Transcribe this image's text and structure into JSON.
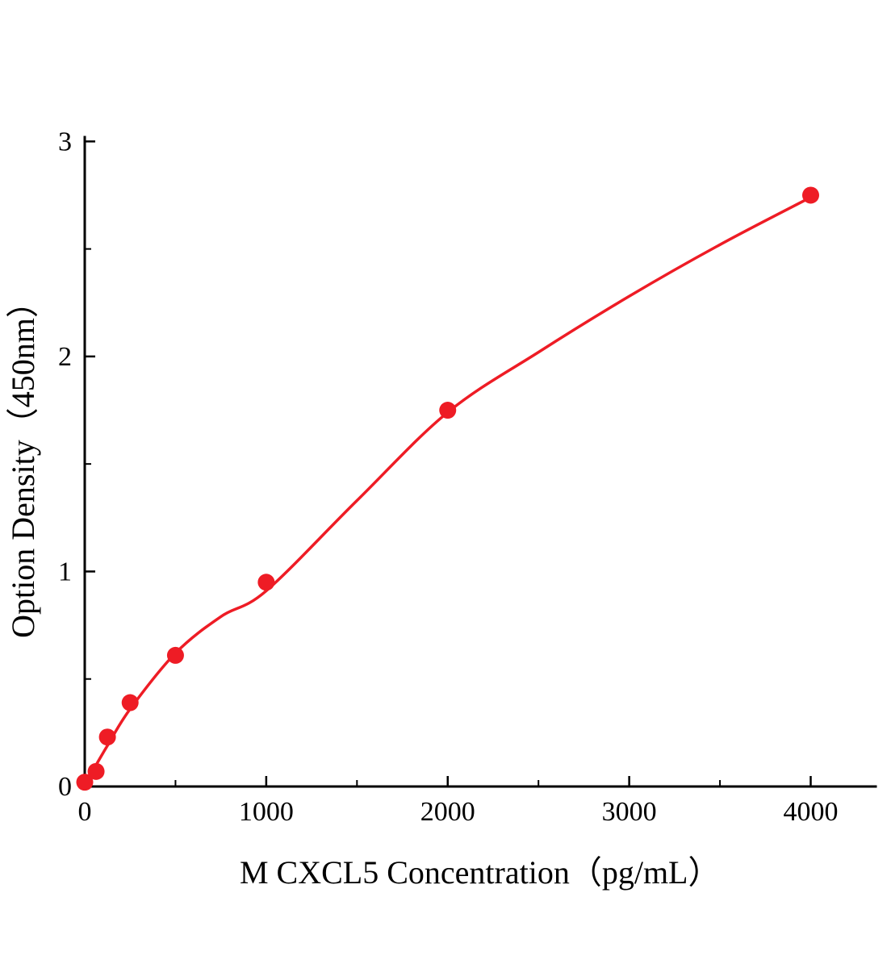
{
  "chart_data": {
    "type": "scatter",
    "title": "",
    "xlabel": "M CXCL5 Concentration（pg/mL）",
    "ylabel": "Option Density（450nm）",
    "xlim": [
      0,
      4358
    ],
    "ylim": [
      0,
      3.02
    ],
    "x_ticks": [
      0,
      1000,
      2000,
      3000,
      4000
    ],
    "y_ticks": [
      0,
      1,
      2,
      3
    ],
    "x_minor_step": 500,
    "y_minor_step": 0.5,
    "grid": false,
    "legend": "none",
    "axis_color": "#000000",
    "series": [
      {
        "name": "M CXCL5 standard",
        "marker": "circle",
        "color": "#ee1c25",
        "points": [
          {
            "x": 0,
            "y": 0.02
          },
          {
            "x": 62.5,
            "y": 0.07
          },
          {
            "x": 125,
            "y": 0.23
          },
          {
            "x": 250,
            "y": 0.39
          },
          {
            "x": 500,
            "y": 0.61
          },
          {
            "x": 1000,
            "y": 0.95
          },
          {
            "x": 2000,
            "y": 1.75
          },
          {
            "x": 4000,
            "y": 2.75
          }
        ]
      }
    ],
    "fit_curve": {
      "name": "fitted standard curve",
      "color": "#ee1c25",
      "points": [
        {
          "x": 0,
          "y": 0.01
        },
        {
          "x": 62.5,
          "y": 0.1
        },
        {
          "x": 125,
          "y": 0.19
        },
        {
          "x": 250,
          "y": 0.36
        },
        {
          "x": 500,
          "y": 0.62
        },
        {
          "x": 750,
          "y": 0.79
        },
        {
          "x": 1000,
          "y": 0.91
        },
        {
          "x": 1500,
          "y": 1.33
        },
        {
          "x": 2000,
          "y": 1.74
        },
        {
          "x": 2500,
          "y": 2.02
        },
        {
          "x": 3000,
          "y": 2.28
        },
        {
          "x": 3500,
          "y": 2.52
        },
        {
          "x": 4000,
          "y": 2.74
        }
      ]
    }
  }
}
